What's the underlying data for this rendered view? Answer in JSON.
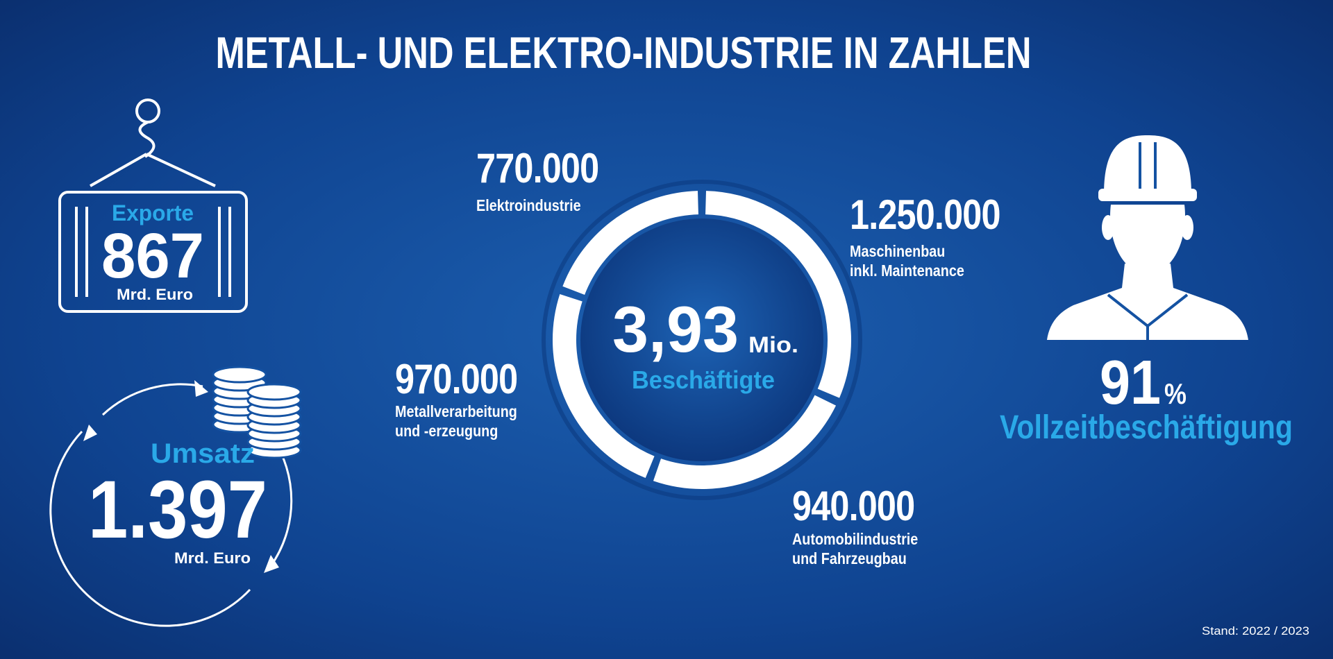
{
  "title": "METALL- UND ELEKTRO-INDUSTRIE IN ZAHLEN",
  "exports": {
    "label": "Exporte",
    "value": 867,
    "unit": "Mrd. Euro"
  },
  "revenue": {
    "label": "Umsatz",
    "value": "1.397",
    "unit": "Mrd. Euro"
  },
  "fulltime": {
    "value": 91,
    "unit": "%",
    "label": "Vollzeitbeschäftigung"
  },
  "footnote": "Stand: 2022 / 2023",
  "chart_data": {
    "type": "donut",
    "center_value": "3,93",
    "center_unit": "Mio.",
    "center_label": "Beschäftigte",
    "categories": [
      "Maschinenbau\ninkl. Maintenance",
      "Automobilindustrie\nund Fahrzeugbau",
      "Metallverarbeitung\nund -erzeugung",
      "Elektroindustrie"
    ],
    "values": [
      1250000,
      940000,
      970000,
      770000
    ],
    "value_labels": [
      "1.250.000",
      "940.000",
      "970.000",
      "770.000"
    ],
    "color": "#ffffff"
  }
}
